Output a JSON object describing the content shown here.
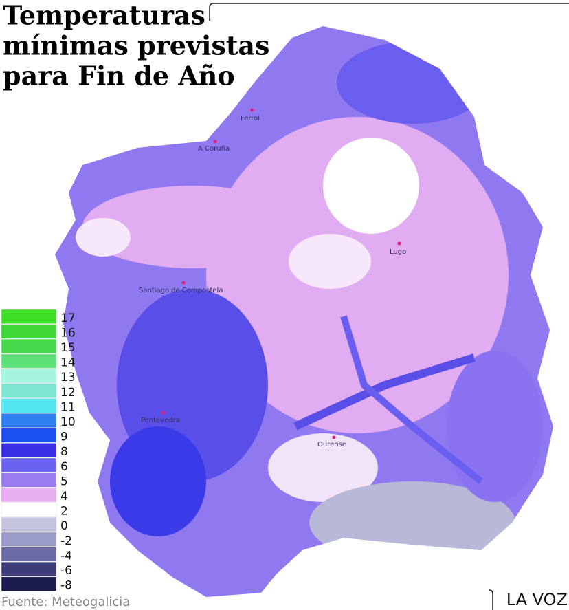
{
  "header": {
    "title_lines": [
      "Temperaturas",
      "mínimas previstas",
      "para Fin de Año"
    ]
  },
  "cities": [
    "Ferrol",
    "A Coruña",
    "Lugo",
    "Santiago de Compostela",
    "Pontevedra",
    "Ourense"
  ],
  "legend": {
    "items": [
      {
        "value": 17,
        "color": "#3ee02a"
      },
      {
        "value": 16,
        "color": "#3fd838"
      },
      {
        "value": 15,
        "color": "#45d84a"
      },
      {
        "value": 14,
        "color": "#5ee17a"
      },
      {
        "value": 13,
        "color": "#a6f5e0"
      },
      {
        "value": 12,
        "color": "#7fe6d2"
      },
      {
        "value": 11,
        "color": "#4fe6f0"
      },
      {
        "value": 10,
        "color": "#2f7ff0"
      },
      {
        "value": 9,
        "color": "#1c4ff0"
      },
      {
        "value": 8,
        "color": "#3a2ee8"
      },
      {
        "value": 6,
        "color": "#6a63f0"
      },
      {
        "value": 5,
        "color": "#9a7cf0"
      },
      {
        "value": 4,
        "color": "#e8b0f0"
      },
      {
        "value": 2,
        "color": "#ffffff"
      },
      {
        "value": 0,
        "color": "#c4c4de"
      },
      {
        "value": -2,
        "color": "#9a9ac8"
      },
      {
        "value": -4,
        "color": "#6a6aa4"
      },
      {
        "value": -6,
        "color": "#3c3c7a"
      },
      {
        "value": -8,
        "color": "#1c1c50"
      }
    ]
  },
  "footer": {
    "source": "Fuente: Meteogalicia",
    "brand": "LA VOZ"
  }
}
